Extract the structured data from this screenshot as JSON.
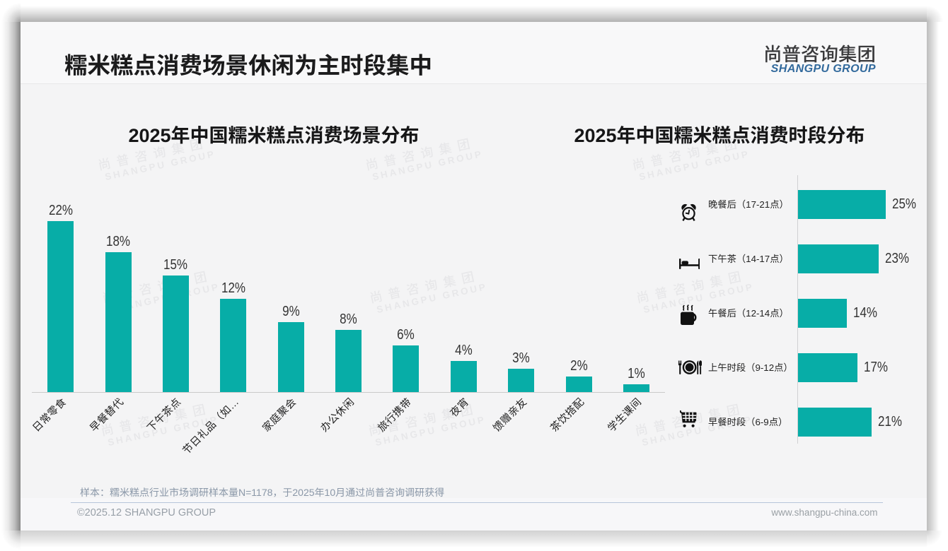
{
  "slide": {
    "title": "糯米糕点消费场景休闲为主时段集中",
    "logo": {
      "cn": "尚普咨询集团",
      "en": "SHANGPU GROUP"
    },
    "watermark": {
      "line1": "尚普咨询集团",
      "line2": "SHANGPU GROUP"
    },
    "footnote": "样本：糯米糕点行业市场调研样本量N=1178，于2025年10月通过尚普咨询调研获得",
    "footer": {
      "left": "©2025.12 SHANGPU GROUP",
      "right": "www.shangpu-china.com"
    }
  },
  "colors": {
    "teal": "#07ada7",
    "logo_blue": "#31699c"
  },
  "chart_data": [
    {
      "type": "bar",
      "orientation": "vertical",
      "title": "2025年中国糯米糕点消费场景分布",
      "categories": [
        "日常零食",
        "早餐替代",
        "下午茶点",
        "节日礼品（如…",
        "家庭聚会",
        "办公休闲",
        "旅行携带",
        "夜宵",
        "馈赠亲友",
        "茶饮搭配",
        "学生课间"
      ],
      "values": [
        22,
        18,
        15,
        12,
        9,
        8,
        6,
        4,
        3,
        2,
        1
      ],
      "value_suffix": "%",
      "ylabel": "",
      "xlabel": "",
      "ylim": [
        0,
        25
      ],
      "grid": false,
      "legend": false,
      "bar_color": "#07ada7",
      "label_rotate_deg": -45
    },
    {
      "type": "bar",
      "orientation": "horizontal",
      "title": "2025年中国糯米糕点消费时段分布",
      "categories": [
        "晚餐后（17-21点）",
        "下午茶（14-17点）",
        "午餐后（12-14点）",
        "上午时段（9-12点）",
        "早餐时段（6-9点）"
      ],
      "values": [
        25,
        23,
        14,
        17,
        21
      ],
      "value_suffix": "%",
      "icons": [
        "alarm-clock-icon",
        "bed-icon",
        "coffee-mug-icon",
        "fork-plate-knife-icon",
        "shopping-cart-icon"
      ],
      "xlim": [
        0,
        25
      ],
      "grid": false,
      "legend": false,
      "bar_color": "#07ada7"
    }
  ]
}
